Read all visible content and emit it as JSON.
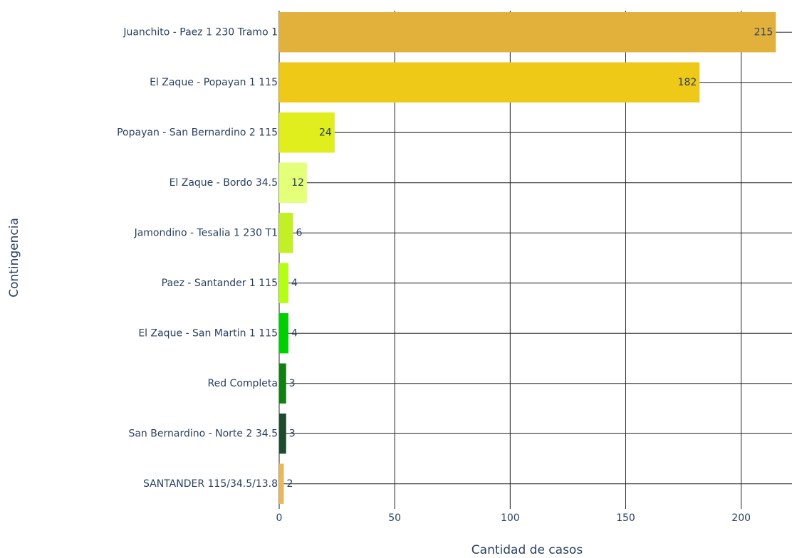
{
  "chart_data": {
    "type": "bar",
    "orientation": "horizontal",
    "x_label": "Cantidad de casos",
    "y_label": "Contingencia",
    "categories": [
      "Juanchito - Paez 1 230 Tramo 1",
      "El Zaque - Popayan 1 115",
      "Popayan - San Bernardino 2 115",
      "El Zaque - Bordo 34.5",
      "Jamondino - Tesalia 1 230 T1",
      "Paez - Santander 1 115",
      "El Zaque - San Martin 1 115",
      "Red Completa",
      "San Bernardino - Norte 2 34.5",
      "SANTANDER 115/34.5/13.8"
    ],
    "values": [
      215,
      182,
      24,
      12,
      6,
      4,
      4,
      3,
      3,
      2
    ],
    "colors": [
      "#e2b13c",
      "#eec918",
      "#dfee1c",
      "#e4ff78",
      "#c3f024",
      "#b5ff14",
      "#00d000",
      "#108010",
      "#1e4a2e",
      "#e8b85a"
    ],
    "xlim": [
      0,
      222
    ],
    "xticks": [
      0,
      50,
      100,
      150,
      200
    ],
    "grid": true
  }
}
